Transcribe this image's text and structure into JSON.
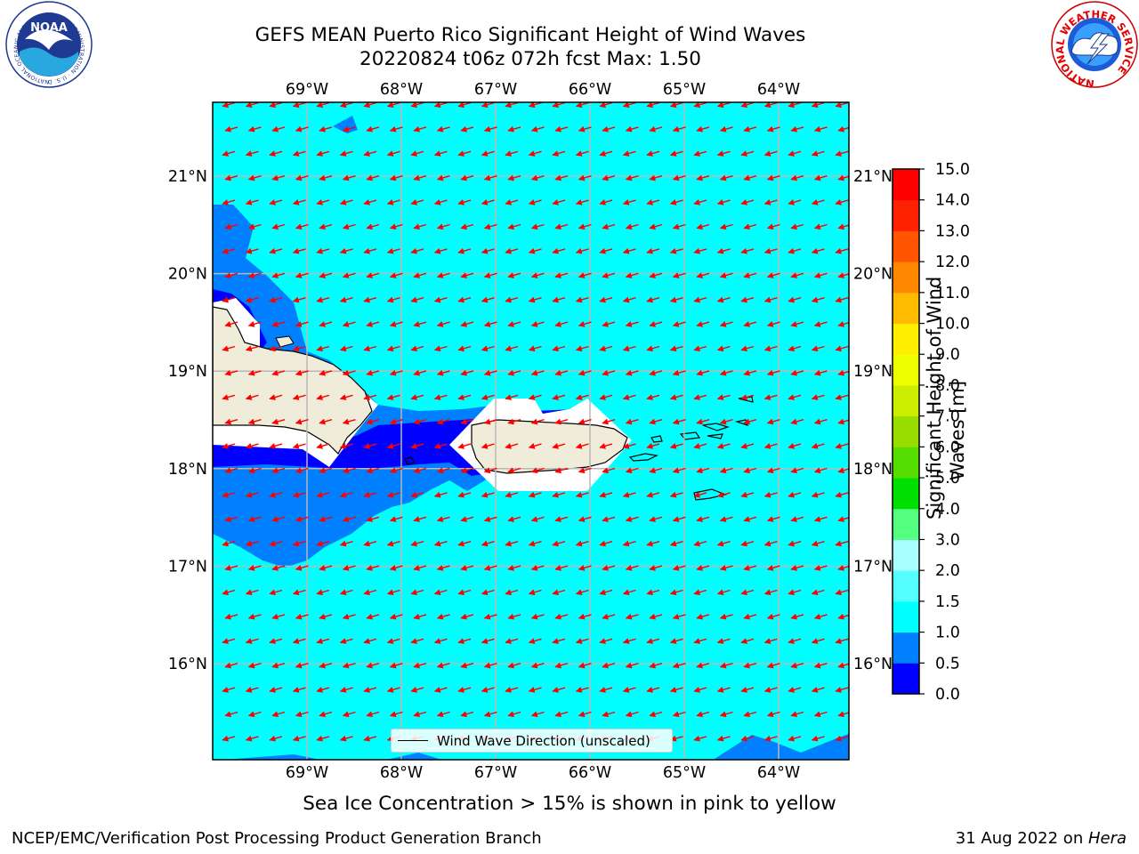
{
  "title": {
    "line1": "GEFS MEAN Puerto Rico Significant Height of Wind Waves",
    "line2": "20220824 t06z 072h fcst   Max: 1.50"
  },
  "logos": {
    "noaa_text": "NOAA",
    "noaa_ring": "NATIONAL OCEANIC AND ATMOSPHERIC ADMINISTRATION · U.S. DEPARTMENT OF COMMERCE",
    "nws_ring": "NATIONAL WEATHER SERVICE"
  },
  "map": {
    "lon_labels": [
      "69°W",
      "68°W",
      "67°W",
      "66°W",
      "65°W",
      "64°W"
    ],
    "lat_labels": [
      "21°N",
      "20°N",
      "19°N",
      "18°N",
      "17°N",
      "16°N"
    ],
    "legend_label": "Wind Wave Direction (unscaled)",
    "colors": {
      "ocean": "#00ffff",
      "band_0_5_1_0": "#0080ff",
      "band_0_0_0_5": "#0000ff",
      "land": "#efedd9",
      "arrow": "#ff0000",
      "grid": "#b8b8b8"
    }
  },
  "colorbar": {
    "label_line1": "Significant Height of Wind",
    "label_line2": "Waves [m]",
    "ticks": [
      "0.0",
      "0.5",
      "1.0",
      "1.5",
      "2.0",
      "3.0",
      "4.0",
      "5.0",
      "6.0",
      "7.0",
      "8.0",
      "9.0",
      "10.0",
      "11.0",
      "12.0",
      "13.0",
      "14.0",
      "15.0"
    ],
    "colors": [
      "#0000ff",
      "#0080ff",
      "#00ffff",
      "#55ffff",
      "#aaffff",
      "#55ff80",
      "#00e000",
      "#55dd00",
      "#99dd00",
      "#ccee00",
      "#eeff00",
      "#ffee00",
      "#ffbb00",
      "#ff8800",
      "#ff5500",
      "#ff2200",
      "#ff0000"
    ]
  },
  "ice_note": "Sea Ice Concentration > 15% is shown in pink to yellow",
  "footer": {
    "left": "NCEP/EMC/Verification Post Processing Product Generation Branch",
    "right_prefix": "31 Aug 2022 on ",
    "right_host": "Hera"
  }
}
